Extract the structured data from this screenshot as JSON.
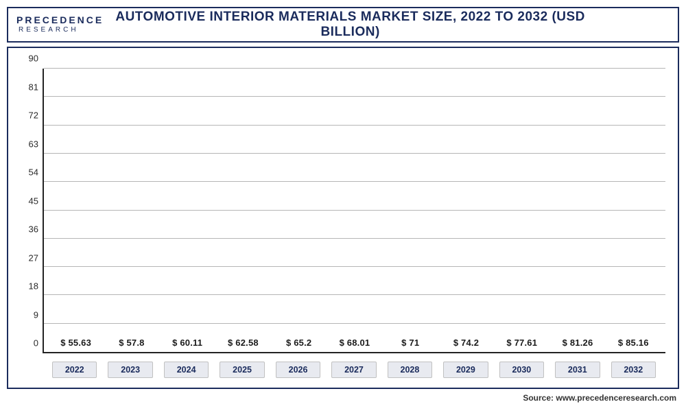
{
  "logo": {
    "line1": "PRECEDENCE",
    "line2": "RESEARCH"
  },
  "title": "AUTOMOTIVE INTERIOR MATERIALS MARKET SIZE, 2022 TO 2032 (USD BILLION)",
  "source": "Source: www.precedenceresearch.com",
  "chart": {
    "type": "bar",
    "ylim": [
      0,
      90
    ],
    "ytick_step": 9,
    "y_ticks": [
      0,
      9,
      18,
      27,
      36,
      45,
      54,
      63,
      72,
      81,
      90
    ],
    "grid_color": "#b5b5b5",
    "background": "#ffffff",
    "axis_color": "#222222",
    "categories": [
      "2022",
      "2023",
      "2024",
      "2025",
      "2026",
      "2027",
      "2028",
      "2029",
      "2030",
      "2031",
      "2032"
    ],
    "values": [
      55.63,
      57.8,
      60.11,
      62.58,
      65.2,
      68.01,
      71,
      74.2,
      77.61,
      81.26,
      85.16
    ],
    "value_labels": [
      "$ 55.63",
      "$ 57.8",
      "$ 60.11",
      "$ 62.58",
      "$ 65.2",
      "$ 68.01",
      "$ 71",
      "$ 74.2",
      "$ 77.61",
      "$ 81.26",
      "$ 85.16"
    ],
    "bar_colors": [
      "#aab3d4",
      "#667099",
      "#4e5a8e",
      "#3f4d85",
      "#35467f",
      "#2b3d78",
      "#1c2f65",
      "#18295c",
      "#152554",
      "#132150",
      "#111d4a"
    ],
    "label_fontsize": 13,
    "tick_fontsize": 13
  }
}
